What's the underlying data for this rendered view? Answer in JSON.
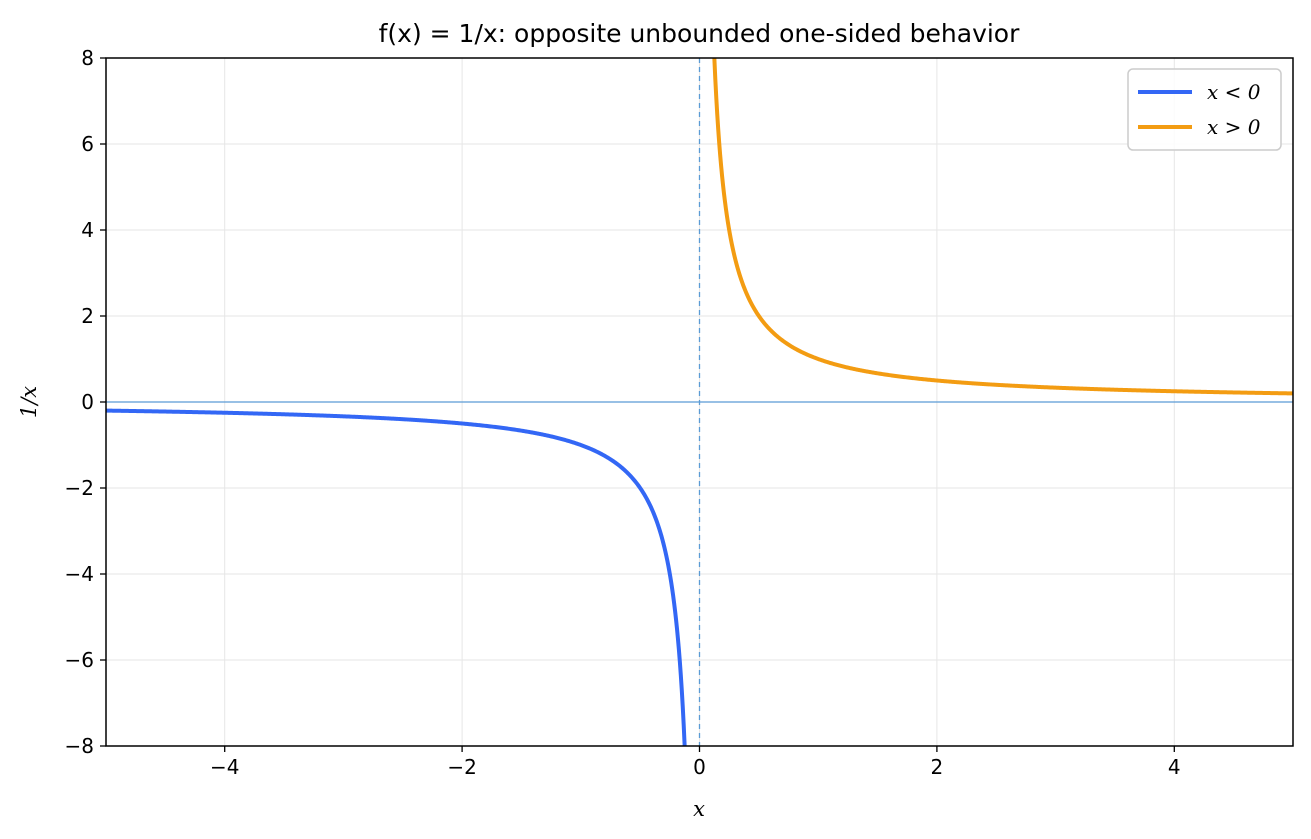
{
  "chart_data": {
    "type": "line",
    "title": "f(x) = 1/x: opposite unbounded one-sided behavior",
    "xlabel": "x",
    "ylabel": "1/x",
    "xlim": [
      -5,
      5
    ],
    "ylim": [
      -8,
      8
    ],
    "x_ticks": [
      -4,
      -2,
      0,
      2,
      4
    ],
    "y_ticks": [
      -8,
      -6,
      -4,
      -2,
      0,
      2,
      4,
      6,
      8
    ],
    "x_tick_labels": [
      "−4",
      "−2",
      "0",
      "2",
      "4"
    ],
    "y_tick_labels": [
      "−8",
      "−6",
      "−4",
      "−2",
      "0",
      "2",
      "4",
      "6",
      "8"
    ],
    "grid": true,
    "legend_position": "top-right",
    "colors": {
      "left_branch": "#3367f5",
      "right_branch": "#f39c12",
      "reference_lines": "#5b9bd5",
      "grid": "#e6e6e6"
    },
    "series": [
      {
        "name": "x < 0",
        "domain": [
          -5,
          -0.125
        ],
        "x": [
          -5.0,
          -4.5,
          -4.0,
          -3.5,
          -3.0,
          -2.5,
          -2.0,
          -1.5,
          -1.0,
          -0.75,
          -0.5,
          -0.4,
          -0.3,
          -0.25,
          -0.2,
          -0.15,
          -0.125
        ],
        "y": [
          -0.2,
          -0.222,
          -0.25,
          -0.286,
          -0.333,
          -0.4,
          -0.5,
          -0.667,
          -1.0,
          -1.333,
          -2.0,
          -2.5,
          -3.333,
          -4.0,
          -5.0,
          -6.667,
          -8.0
        ]
      },
      {
        "name": "x > 0",
        "domain": [
          0.125,
          5
        ],
        "x": [
          0.125,
          0.15,
          0.2,
          0.25,
          0.3,
          0.4,
          0.5,
          0.75,
          1.0,
          1.5,
          2.0,
          2.5,
          3.0,
          3.5,
          4.0,
          4.5,
          5.0
        ],
        "y": [
          8.0,
          6.667,
          5.0,
          4.0,
          3.333,
          2.5,
          2.0,
          1.333,
          1.0,
          0.667,
          0.5,
          0.4,
          0.333,
          0.286,
          0.25,
          0.222,
          0.2
        ]
      }
    ],
    "legend": [
      {
        "label": "x < 0",
        "series": 0
      },
      {
        "label": "x > 0",
        "series": 1
      }
    ],
    "reference_lines": [
      {
        "orientation": "horizontal",
        "value": 0,
        "style": "solid"
      },
      {
        "orientation": "vertical",
        "value": 0,
        "style": "dashed"
      }
    ]
  }
}
